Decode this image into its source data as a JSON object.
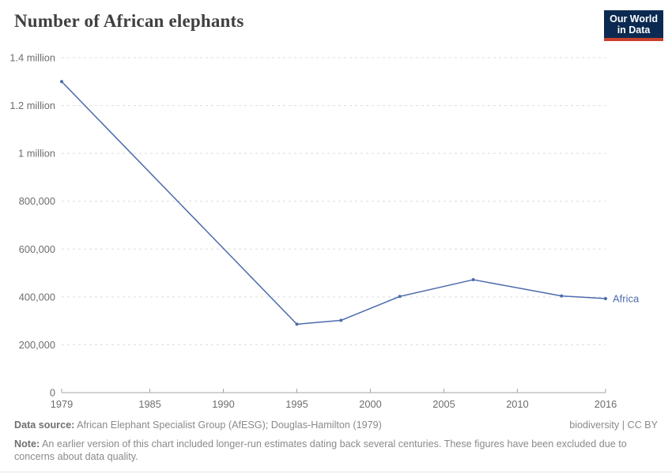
{
  "header": {
    "title": "Number of African elephants",
    "logo": {
      "line1": "Our World",
      "line2": "in Data"
    }
  },
  "colors": {
    "line": "#4c6bac",
    "logo_bg": "#0b2a51",
    "logo_bar": "#c7402d",
    "grid": "#dcdcdc",
    "axis": "#a5a5a5",
    "tick_label": "#6d6d6d",
    "title": "#3f3f3f",
    "footer_text": "#8a8a8a"
  },
  "chart_data": {
    "type": "line",
    "title": "Number of African elephants",
    "xlabel": "",
    "ylabel": "",
    "xlim": [
      1979,
      2016
    ],
    "ylim": [
      0,
      1400000
    ],
    "grid": "horizontal-dashed",
    "legend_position": "end-of-line-label",
    "x_ticks": [
      1979,
      1985,
      1990,
      1995,
      2000,
      2005,
      2010,
      2016
    ],
    "y_ticks": [
      {
        "value": 0,
        "label": "0"
      },
      {
        "value": 200000,
        "label": "200,000"
      },
      {
        "value": 400000,
        "label": "400,000"
      },
      {
        "value": 600000,
        "label": "600,000"
      },
      {
        "value": 800000,
        "label": "800,000"
      },
      {
        "value": 1000000,
        "label": "1 million"
      },
      {
        "value": 1200000,
        "label": "1.2 million"
      },
      {
        "value": 1400000,
        "label": "1.4 million"
      }
    ],
    "series": [
      {
        "name": "Africa",
        "color": "#4c6bac",
        "points": [
          {
            "x": 1979,
            "y": 1300000
          },
          {
            "x": 1995,
            "y": 286000
          },
          {
            "x": 1998,
            "y": 302000
          },
          {
            "x": 2002,
            "y": 402000
          },
          {
            "x": 2007,
            "y": 472000
          },
          {
            "x": 2013,
            "y": 404000
          },
          {
            "x": 2016,
            "y": 393000
          }
        ]
      }
    ]
  },
  "footer": {
    "datasource_label": "Data source:",
    "datasource_text": "African Elephant Specialist Group (AfESG); Douglas-Hamilton (1979)",
    "license": "biodiversity | CC BY",
    "note_label": "Note:",
    "note_text": "An earlier version of this chart included longer-run estimates dating back several centuries. These figures have been excluded due to concerns about data quality."
  }
}
